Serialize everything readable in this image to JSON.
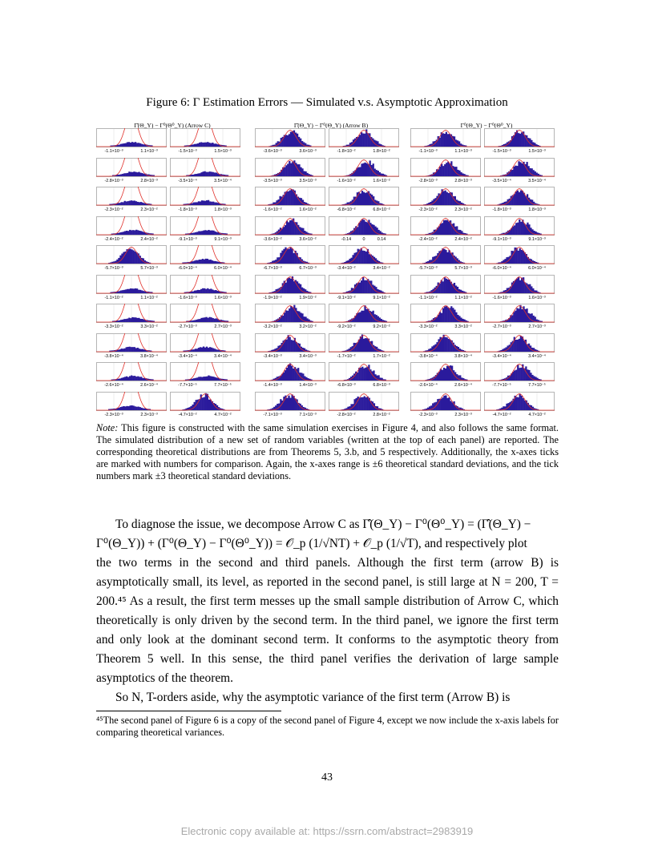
{
  "figure": {
    "title": "Figure 6: Γ Estimation Errors — Simulated v.s. Asymptotic Approximation",
    "panels": [
      {
        "title": "Γ̂(Θ_Y) − Γ⁰(Θ⁰_Y) (Arrow C)",
        "rows": [
          [
            [
              "-1.1×10⁻³",
              "1.1×10⁻³"
            ],
            [
              "-1.5×10⁻³",
              "1.5×10⁻³"
            ]
          ],
          [
            [
              "-2.8×10⁻³",
              "2.8×10⁻³"
            ],
            [
              "-3.5×10⁻⁴",
              "3.5×10⁻⁴"
            ]
          ],
          [
            [
              "-2.3×10⁻²",
              "2.3×10⁻²"
            ],
            [
              "-1.8×10⁻³",
              "1.8×10⁻³"
            ]
          ],
          [
            [
              "-2.4×10⁻²",
              "2.4×10⁻²"
            ],
            [
              "-9.1×10⁻³",
              "9.1×10⁻³"
            ]
          ],
          [
            [
              "-5.7×10⁻³",
              "5.7×10⁻³"
            ],
            [
              "-6.0×10⁻⁴",
              "6.0×10⁻⁴"
            ]
          ],
          [
            [
              "-1.1×10⁻²",
              "1.1×10⁻²"
            ],
            [
              "-1.6×10⁻³",
              "1.6×10⁻³"
            ]
          ],
          [
            [
              "-3.3×10⁻²",
              "3.3×10⁻²"
            ],
            [
              "-2.7×10⁻³",
              "2.7×10⁻³"
            ]
          ],
          [
            [
              "-3.8×10⁻⁴",
              "3.8×10⁻⁴"
            ],
            [
              "-3.4×10⁻⁴",
              "3.4×10⁻⁴"
            ]
          ],
          [
            [
              "-2.6×10⁻⁴",
              "2.6×10⁻⁴"
            ],
            [
              "-7.7×10⁻⁵",
              "7.7×10⁻⁵"
            ]
          ],
          [
            [
              "-2.3×10⁻³",
              "2.3×10⁻³"
            ],
            [
              "-4.7×10⁻²",
              "4.7×10⁻²"
            ]
          ]
        ]
      },
      {
        "title": "Γ̂(Θ_Y) − Γ⁰(Θ_Y) (Arrow B)",
        "rows": [
          [
            [
              "-3.6×10⁻³",
              "3.6×10⁻³"
            ],
            [
              "-1.8×10⁻²",
              "1.8×10⁻²"
            ]
          ],
          [
            [
              "-3.5×10⁻³",
              "3.5×10⁻³"
            ],
            [
              "-1.6×10⁻²",
              "1.6×10⁻²"
            ]
          ],
          [
            [
              "-1.6×10⁻²",
              "1.6×10⁻²"
            ],
            [
              "-6.8×10⁻²",
              "6.8×10⁻²"
            ]
          ],
          [
            [
              "-3.6×10⁻²",
              "3.6×10⁻²"
            ],
            [
              "-0.14",
              "0",
              "0.14"
            ]
          ],
          [
            [
              "-6.7×10⁻³",
              "6.7×10⁻³"
            ],
            [
              "-3.4×10⁻²",
              "3.4×10⁻²"
            ]
          ],
          [
            [
              "-1.9×10⁻²",
              "1.9×10⁻²"
            ],
            [
              "-9.1×10⁻²",
              "9.1×10⁻²"
            ]
          ],
          [
            [
              "-3.2×10⁻²",
              "3.2×10⁻²"
            ],
            [
              "-9.2×10⁻²",
              "9.2×10⁻²"
            ]
          ],
          [
            [
              "-3.4×10⁻³",
              "3.4×10⁻³"
            ],
            [
              "-1.7×10⁻²",
              "1.7×10⁻²"
            ]
          ],
          [
            [
              "-1.4×10⁻³",
              "1.4×10⁻³"
            ],
            [
              "-6.8×10⁻³",
              "6.8×10⁻³"
            ]
          ],
          [
            [
              "-7.1×10⁻³",
              "7.1×10⁻³"
            ],
            [
              "-2.8×10⁻²",
              "2.8×10⁻²"
            ]
          ]
        ]
      },
      {
        "title": "Γ⁰(Θ_Y) − Γ⁰(Θ⁰_Y)",
        "rows": [
          [
            [
              "-1.1×10⁻³",
              "1.1×10⁻³"
            ],
            [
              "-1.5×10⁻³",
              "1.5×10⁻³"
            ]
          ],
          [
            [
              "-2.8×10⁻³",
              "2.8×10⁻³"
            ],
            [
              "-3.5×10⁻⁴",
              "3.5×10⁻⁴"
            ]
          ],
          [
            [
              "-2.3×10⁻²",
              "2.3×10⁻²"
            ],
            [
              "-1.8×10⁻³",
              "1.8×10⁻³"
            ]
          ],
          [
            [
              "-2.4×10⁻²",
              "2.4×10⁻²"
            ],
            [
              "-9.1×10⁻³",
              "9.1×10⁻³"
            ]
          ],
          [
            [
              "-5.7×10⁻³",
              "5.7×10⁻³"
            ],
            [
              "-6.0×10⁻⁴",
              "6.0×10⁻⁴"
            ]
          ],
          [
            [
              "-1.1×10⁻²",
              "1.1×10⁻²"
            ],
            [
              "-1.6×10⁻³",
              "1.6×10⁻³"
            ]
          ],
          [
            [
              "-3.3×10⁻²",
              "3.3×10⁻²"
            ],
            [
              "-2.7×10⁻³",
              "2.7×10⁻³"
            ]
          ],
          [
            [
              "-3.8×10⁻⁴",
              "3.8×10⁻⁴"
            ],
            [
              "-3.4×10⁻⁴",
              "3.4×10⁻⁴"
            ]
          ],
          [
            [
              "-2.6×10⁻⁴",
              "2.6×10⁻⁴"
            ],
            [
              "-7.7×10⁻⁵",
              "7.7×10⁻⁵"
            ]
          ],
          [
            [
              "-2.3×10⁻³",
              "2.3×10⁻³"
            ],
            [
              "-4.7×10⁻²",
              "4.7×10⁻²"
            ]
          ]
        ]
      }
    ]
  },
  "note": {
    "label": "Note:",
    "text": "This figure is constructed with the same simulation exercises in Figure 4, and also follows the same format. The simulated distribution of a new set of random variables (written at the top of each panel) are reported. The corresponding theoretical distributions are from Theorems 5, 3.b, and 5 respectively. Additionally, the x-axes ticks are marked with numbers for comparison. Again, the x-axes range is ±6 theoretical standard deviations, and the tick numbers mark ±3 theoretical standard deviations."
  },
  "body": {
    "p1_line1": "To diagnose the issue, we decompose Arrow C as Γ̂(Θ_Y) − Γ⁰(Θ⁰_Y) = (Γ̂(Θ_Y) −",
    "p1_line2": "Γ⁰(Θ_Y)) + (Γ⁰(Θ_Y) − Γ⁰(Θ⁰_Y)) = 𝒪_p (1/√NT) + 𝒪_p (1/√T), and respectively plot",
    "p1_rest": "the two terms in the second and third panels. Although the first term (arrow B) is asymptotically small, its level, as reported in the second panel, is still large at N = 200, T = 200.⁴⁵ As a result, the first term messes up the small sample distribution of Arrow C, which theoretically is only driven by the second term. In the third panel, we ignore the first term and only look at the dominant second term. It conforms to the asymptotic theory from Theorem 5 well. In this sense, the third panel verifies the derivation of large sample asymptotics of the theorem.",
    "p2": "So N, T-orders aside, why the asymptotic variance of the first term (Arrow B) is"
  },
  "footnote": {
    "text": "⁴⁵The second panel of Figure 6 is a copy of the second panel of Figure 4, except we now include the x-axis labels for comparing theoretical variances."
  },
  "page_number": "43",
  "ssrn_footer": "Electronic copy available at: https://ssrn.com/abstract=2983919",
  "colors": {
    "bars": "#2a1a9c",
    "curve": "#e0302a",
    "link": "#1a1ab4"
  }
}
